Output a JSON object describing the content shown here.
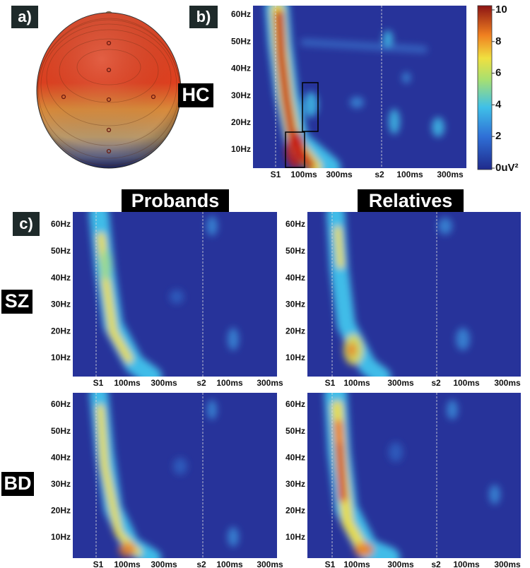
{
  "panel_labels": [
    "a)",
    "b)",
    "c)"
  ],
  "hc_label": "HC",
  "column_titles": [
    "Probands",
    "Relatives"
  ],
  "row_labels": [
    "SZ",
    "BD"
  ],
  "y_axis_labels": [
    "60Hz",
    "50Hz",
    "40Hz",
    "30Hz",
    "20Hz",
    "10Hz"
  ],
  "x_axis_labels": [
    "S1",
    "100ms",
    "300ms",
    "s2",
    "100ms",
    "300ms"
  ],
  "colorbar": {
    "ticks": [
      10,
      8,
      6,
      4,
      2,
      {
        "value": 0,
        "label": "0uV²"
      }
    ]
  }
}
